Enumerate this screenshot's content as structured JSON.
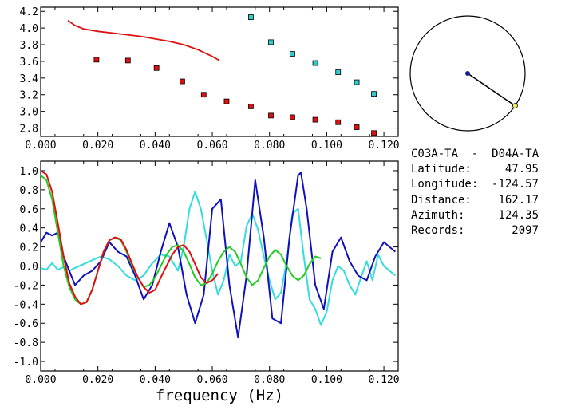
{
  "station_info": {
    "pair": "C03A-TA  -  D04A-TA",
    "rows": [
      {
        "label": "Latitude:",
        "value": "47.95"
      },
      {
        "label": "Longitude:",
        "value": "-124.57"
      },
      {
        "label": "Distance:",
        "value": "162.17"
      },
      {
        "label": "Azimuth:",
        "value": "124.35"
      },
      {
        "label": "Records:",
        "value": "2097"
      }
    ]
  },
  "chart_data": [
    {
      "type": "scatter",
      "xlim": [
        0.0,
        0.125
      ],
      "ylim": [
        2.7,
        4.25
      ],
      "x_ticks": [
        "0.000",
        "0.020",
        "0.040",
        "0.060",
        "0.080",
        "0.100",
        "0.120"
      ],
      "y_ticks": [
        "2.8",
        "3.0",
        "3.2",
        "3.4",
        "3.6",
        "3.8",
        "4.0",
        "4.2"
      ],
      "colors": {
        "red": "#dd1111",
        "cyan": "#33cccc",
        "line": "#dd1111"
      },
      "series": [
        {
          "marker": "square",
          "color": "red",
          "x": [
            0.0195,
            0.0305,
            0.0405,
            0.0495,
            0.057,
            0.065,
            0.0735,
            0.0805,
            0.088,
            0.096,
            0.104,
            0.1105,
            0.1165
          ],
          "y": [
            3.62,
            3.61,
            3.52,
            3.36,
            3.2,
            3.12,
            3.06,
            2.95,
            2.93,
            2.9,
            2.87,
            2.81,
            2.74
          ]
        },
        {
          "marker": "square",
          "color": "cyan",
          "x": [
            0.0735,
            0.0805,
            0.088,
            0.096,
            0.104,
            0.1105,
            0.1165
          ],
          "y": [
            4.13,
            3.83,
            3.69,
            3.58,
            3.47,
            3.35,
            3.21
          ]
        },
        {
          "marker": "line",
          "color": "line",
          "x": [
            0.0095,
            0.012,
            0.015,
            0.02,
            0.025,
            0.03,
            0.035,
            0.04,
            0.045,
            0.05,
            0.055,
            0.06,
            0.0625
          ],
          "y": [
            4.09,
            4.03,
            3.99,
            3.96,
            3.94,
            3.92,
            3.9,
            3.87,
            3.84,
            3.8,
            3.74,
            3.66,
            3.61
          ]
        }
      ]
    },
    {
      "type": "line",
      "xlim": [
        0.0,
        0.125
      ],
      "ylim": [
        -1.1,
        1.1
      ],
      "x_ticks": [
        "0.000",
        "0.020",
        "0.040",
        "0.060",
        "0.080",
        "0.100",
        "0.120"
      ],
      "y_ticks": [
        "1.0",
        "0.8",
        "0.6",
        "0.4",
        "0.2",
        "0.0",
        "-0.2",
        "-0.4",
        "-0.6",
        "-0.8",
        "-1.0"
      ],
      "xlabel": "frequency (Hz)",
      "zero_line": true,
      "colors": {
        "blue": "#1111bb",
        "cyan": "#33dddd",
        "green": "#22cc22",
        "red": "#dd1111"
      },
      "series": [
        {
          "color": "cyan",
          "x": [
            0.0,
            0.002,
            0.004,
            0.006,
            0.008,
            0.01,
            0.012,
            0.015,
            0.018,
            0.021,
            0.024,
            0.027,
            0.03,
            0.033,
            0.036,
            0.039,
            0.042,
            0.045,
            0.048,
            0.05,
            0.052,
            0.054,
            0.056,
            0.058,
            0.06,
            0.062,
            0.064,
            0.066,
            0.068,
            0.07,
            0.072,
            0.074,
            0.076,
            0.078,
            0.08,
            0.082,
            0.084,
            0.086,
            0.088,
            0.09,
            0.092,
            0.094,
            0.096,
            0.098,
            0.1,
            0.102,
            0.104,
            0.106,
            0.108,
            0.11,
            0.112,
            0.114,
            0.116,
            0.118,
            0.12,
            0.122,
            0.124
          ],
          "y": [
            -0.02,
            -0.04,
            0.03,
            -0.04,
            -0.01,
            -0.05,
            -0.02,
            0.02,
            0.06,
            0.1,
            0.07,
            0.0,
            -0.1,
            -0.15,
            -0.1,
            0.03,
            0.12,
            0.1,
            -0.05,
            0.2,
            0.6,
            0.78,
            0.6,
            0.28,
            -0.05,
            -0.3,
            -0.15,
            0.12,
            0.0,
            0.05,
            0.42,
            0.55,
            0.38,
            0.1,
            -0.15,
            -0.35,
            -0.28,
            0.05,
            0.55,
            0.6,
            0.1,
            -0.35,
            -0.45,
            -0.62,
            -0.48,
            -0.15,
            0.0,
            -0.05,
            -0.2,
            -0.3,
            -0.12,
            0.05,
            -0.15,
            0.12,
            0.0,
            -0.05,
            -0.1
          ]
        },
        {
          "color": "blue",
          "x": [
            0.0,
            0.002,
            0.004,
            0.006,
            0.008,
            0.01,
            0.012,
            0.015,
            0.018,
            0.021,
            0.024,
            0.027,
            0.03,
            0.033,
            0.036,
            0.039,
            0.042,
            0.045,
            0.048,
            0.051,
            0.054,
            0.057,
            0.06,
            0.063,
            0.066,
            0.069,
            0.072,
            0.075,
            0.078,
            0.081,
            0.084,
            0.087,
            0.09,
            0.091,
            0.093,
            0.096,
            0.099,
            0.102,
            0.105,
            0.108,
            0.111,
            0.114,
            0.117,
            0.12,
            0.122,
            0.124
          ],
          "y": [
            0.25,
            0.35,
            0.32,
            0.35,
            0.1,
            -0.05,
            -0.2,
            -0.1,
            -0.05,
            0.05,
            0.25,
            0.15,
            0.1,
            -0.1,
            -0.35,
            -0.2,
            0.15,
            0.45,
            0.2,
            -0.3,
            -0.6,
            -0.3,
            0.6,
            0.7,
            -0.2,
            -0.75,
            -0.1,
            0.9,
            0.3,
            -0.55,
            -0.6,
            0.3,
            0.95,
            0.98,
            0.6,
            -0.2,
            -0.45,
            0.15,
            0.3,
            0.05,
            -0.1,
            -0.15,
            0.1,
            0.25,
            0.2,
            0.15
          ]
        },
        {
          "color": "green",
          "x": [
            0.0,
            0.002,
            0.004,
            0.006,
            0.008,
            0.01,
            0.012,
            0.014,
            0.016,
            0.018,
            0.02,
            0.022,
            0.024,
            0.026,
            0.028,
            0.03,
            0.032,
            0.034,
            0.036,
            0.038,
            0.04,
            0.042,
            0.044,
            0.046,
            0.048,
            0.05,
            0.052,
            0.054,
            0.056,
            0.058,
            0.06,
            0.062,
            0.064,
            0.066,
            0.068,
            0.07,
            0.072,
            0.074,
            0.076,
            0.078,
            0.08,
            0.082,
            0.084,
            0.086,
            0.088,
            0.09,
            0.092,
            0.094,
            0.096,
            0.098
          ],
          "y": [
            0.95,
            0.9,
            0.7,
            0.35,
            0.0,
            -0.22,
            -0.35,
            -0.4,
            -0.38,
            -0.25,
            -0.05,
            0.15,
            0.27,
            0.3,
            0.27,
            0.15,
            0.0,
            -0.12,
            -0.22,
            -0.2,
            -0.12,
            0.0,
            0.12,
            0.2,
            0.22,
            0.15,
            0.02,
            -0.12,
            -0.2,
            -0.18,
            -0.08,
            0.05,
            0.15,
            0.2,
            0.15,
            0.02,
            -0.12,
            -0.2,
            -0.15,
            -0.02,
            0.1,
            0.17,
            0.12,
            0.0,
            -0.1,
            -0.15,
            -0.1,
            0.02,
            0.1,
            0.08
          ]
        },
        {
          "color": "red",
          "x": [
            0.0,
            0.002,
            0.004,
            0.006,
            0.008,
            0.01,
            0.012,
            0.014,
            0.016,
            0.018,
            0.02,
            0.022,
            0.024,
            0.026,
            0.028,
            0.03,
            0.032,
            0.034,
            0.036,
            0.038,
            0.04,
            0.042,
            0.044,
            0.046,
            0.048,
            0.05,
            0.052,
            0.054,
            0.056,
            0.058,
            0.06,
            0.062
          ],
          "y": [
            1.0,
            0.96,
            0.78,
            0.45,
            0.1,
            -0.18,
            -0.32,
            -0.4,
            -0.38,
            -0.25,
            -0.05,
            0.15,
            0.27,
            0.3,
            0.28,
            0.17,
            0.02,
            -0.12,
            -0.22,
            -0.28,
            -0.25,
            -0.12,
            0.0,
            0.12,
            0.2,
            0.22,
            0.15,
            0.02,
            -0.12,
            -0.18,
            -0.15,
            -0.08
          ]
        }
      ]
    },
    {
      "type": "scatter",
      "subtype": "azimuth_dial",
      "azimuth_deg": 124.35,
      "colors": {
        "center": "#1a1aa0",
        "needle": "#000000",
        "tip": "#eeee66"
      }
    }
  ]
}
